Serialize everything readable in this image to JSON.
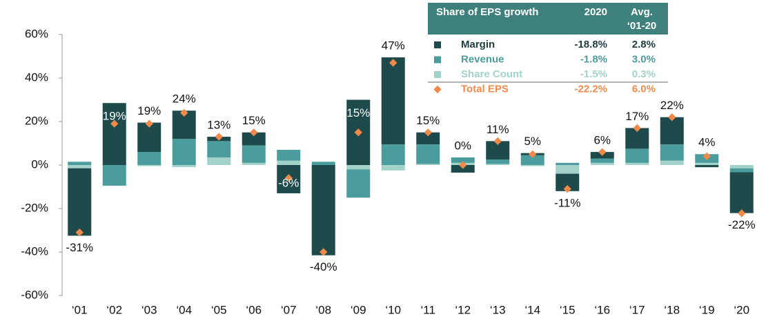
{
  "chart_data": {
    "type": "stacked_bar",
    "categories": [
      "‘01",
      "‘02",
      "‘03",
      "‘04",
      "‘05",
      "‘06",
      "‘07",
      "‘08",
      "‘09",
      "‘10",
      "‘11",
      "‘12",
      "‘13",
      "‘14",
      "‘15",
      "‘16",
      "‘17",
      "‘18",
      "‘19",
      "‘20"
    ],
    "series": [
      {
        "name": "Share Count",
        "color": "#a3d2ca",
        "values": [
          -1.5,
          0,
          -0.5,
          -1,
          3.5,
          1,
          2,
          0,
          -2,
          -2.5,
          0.5,
          1,
          0.5,
          -0.5,
          -4,
          1,
          1,
          2,
          1,
          -1.5
        ]
      },
      {
        "name": "Revenue",
        "color": "#4a9d9c",
        "values": [
          1.5,
          -9.5,
          6,
          12,
          7.5,
          8,
          5,
          1.5,
          -13,
          9.5,
          9,
          2.5,
          2,
          4.5,
          1,
          2,
          6.5,
          7.5,
          4,
          -1.8
        ]
      },
      {
        "name": "Margin",
        "color": "#1e4a4b",
        "values": [
          -31,
          28.5,
          13.5,
          13,
          2,
          6,
          -13,
          -41.5,
          30,
          40,
          5.5,
          -3.5,
          8.5,
          1,
          -8,
          3,
          9.5,
          12.5,
          -1,
          -18.8
        ]
      }
    ],
    "total": {
      "name": "Total EPS",
      "color": "#f08a4b",
      "values": [
        -31,
        19,
        19,
        24,
        13,
        15,
        -6,
        -40,
        15,
        47,
        15,
        0,
        11,
        5,
        -11,
        6,
        17,
        22,
        4,
        -22.2
      ],
      "value_labels": [
        "-31%",
        "19%",
        "19%",
        "24%",
        "13%",
        "15%",
        "-6%",
        "-40%",
        "15%",
        "47%",
        "15%",
        "0%",
        "11%",
        "5%",
        "-11%",
        "6%",
        "17%",
        "22%",
        "4%",
        "-22%"
      ]
    },
    "ylim": [
      -60,
      60
    ],
    "yticks": [
      {
        "value": 60,
        "label": "60%"
      },
      {
        "value": 40,
        "label": "40%"
      },
      {
        "value": 20,
        "label": "20%"
      },
      {
        "value": 0,
        "label": "0%"
      },
      {
        "value": -20,
        "label": "-20%"
      },
      {
        "value": -40,
        "label": "-40%"
      },
      {
        "value": -60,
        "label": "-60%"
      }
    ],
    "grid": false,
    "table": {
      "header": [
        "Share of EPS growth",
        "2020",
        "Avg.",
        "‘01-20"
      ],
      "rows": [
        [
          "Margin",
          "-18.8%",
          "2.8%"
        ],
        [
          "Revenue",
          "-1.8%",
          "3.0%"
        ],
        [
          "Share Count",
          "-1.5%",
          "0.3%"
        ],
        [
          "Total EPS",
          "-22.2%",
          "6.0%"
        ]
      ]
    }
  }
}
